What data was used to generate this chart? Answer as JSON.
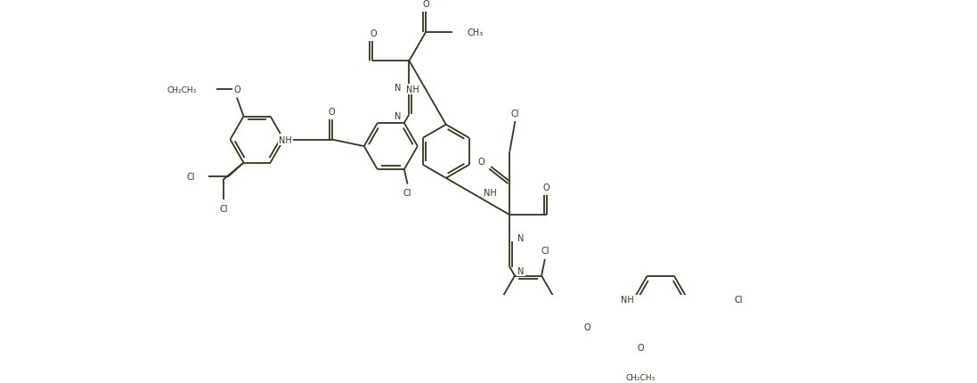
{
  "figsize": [
    10.97,
    4.31
  ],
  "dpi": 100,
  "bg": "#ffffff",
  "lc": "#2d3a1e",
  "lw": 1.3,
  "fs": 7.0,
  "xlim": [
    0,
    10.97
  ],
  "ylim": [
    0,
    4.31
  ]
}
